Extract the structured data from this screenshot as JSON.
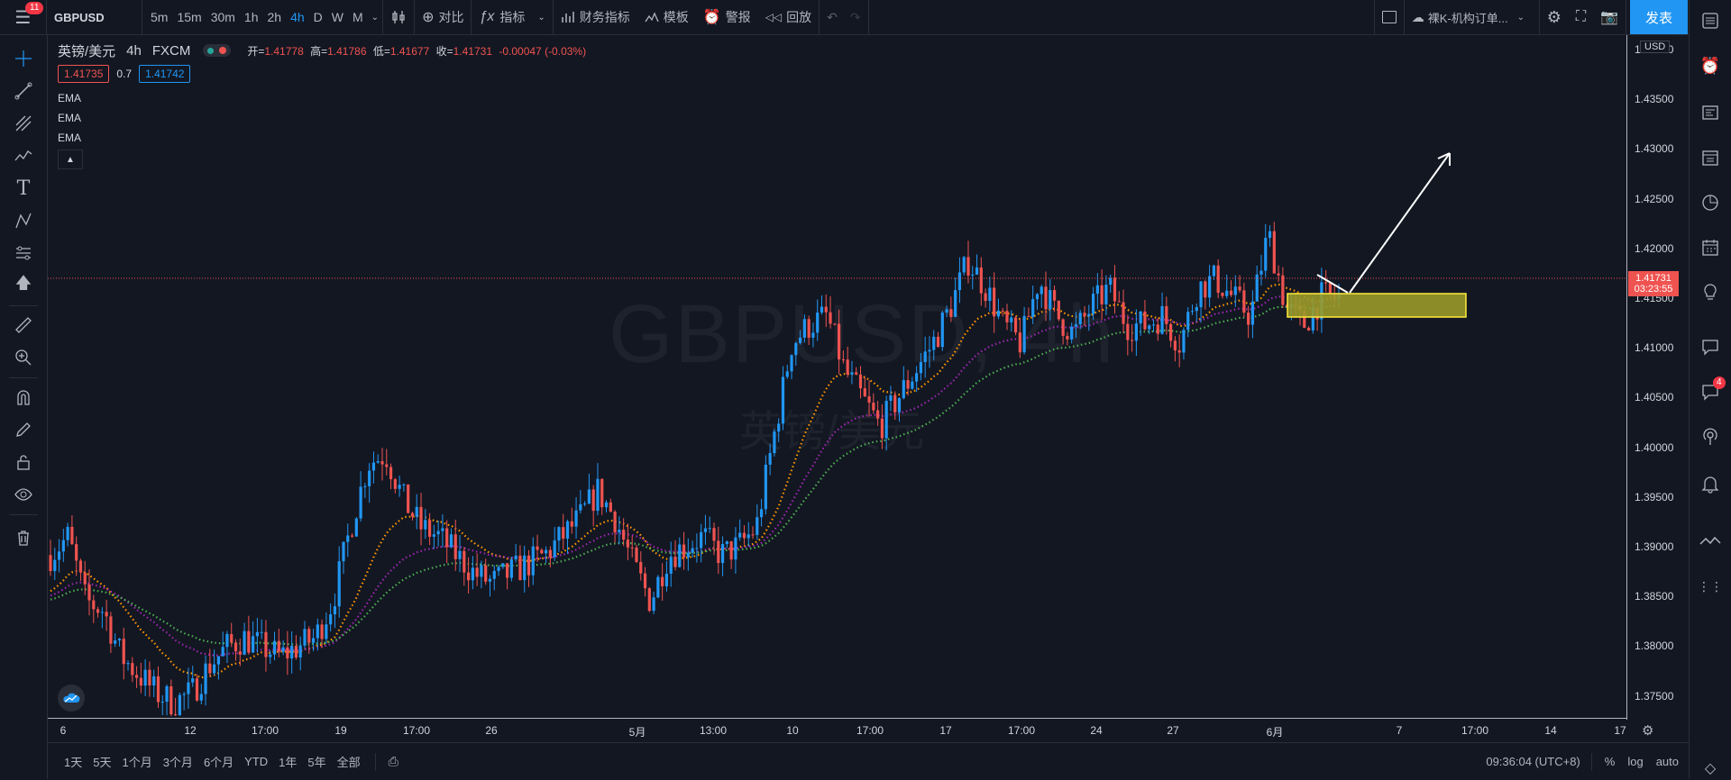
{
  "topbar": {
    "menu_badge": "11",
    "symbol": "GBPUSD",
    "timeframes": [
      "5m",
      "15m",
      "30m",
      "1h",
      "2h",
      "4h",
      "D",
      "W",
      "M"
    ],
    "active_timeframe": "4h",
    "compare": "对比",
    "indicators": "指标",
    "financials": "财务指标",
    "templates": "模板",
    "alerts": "警报",
    "replay": "回放",
    "layout_name": "裸K-机构订单...",
    "publish": "发表"
  },
  "legend": {
    "title": "英镑/美元",
    "interval": "4h",
    "exchange": "FXCM",
    "open_label": "开=",
    "open": "1.41778",
    "high_label": "高=",
    "high": "1.41786",
    "low_label": "低=",
    "low": "1.41677",
    "close_label": "收=",
    "close": "1.41731",
    "change": "-0.00047 (-0.03%)",
    "bid": "1.41735",
    "spread": "0.7",
    "ask": "1.41742",
    "studies": [
      "EMA",
      "EMA",
      "EMA"
    ]
  },
  "watermark": {
    "symbol": "GBPUSD, 4h",
    "name": "英镑/美元"
  },
  "price_axis": {
    "currency": "USD",
    "labels": [
      "1.44000",
      "1.43500",
      "1.43000",
      "1.42500",
      "1.42000",
      "1.41500",
      "1.41000",
      "1.40500",
      "1.40000",
      "1.39500",
      "1.39000",
      "1.38500",
      "1.38000",
      "1.37500"
    ],
    "current_price": "1.41731",
    "countdown": "03:23:55"
  },
  "time_axis": {
    "labels": [
      "6",
      "12",
      "17:00",
      "19",
      "17:00",
      "26",
      "5月",
      "13:00",
      "10",
      "17:00",
      "17",
      "17:00",
      "24",
      "27",
      "6月",
      "7",
      "17:00",
      "14",
      "17"
    ]
  },
  "bottombar": {
    "ranges": [
      "1天",
      "5天",
      "1个月",
      "3个月",
      "6个月",
      "YTD",
      "1年",
      "5年",
      "全部"
    ],
    "time": "09:36:04 (UTC+8)",
    "percent": "%",
    "log": "log",
    "auto": "auto"
  },
  "right_badge": "4",
  "colors": {
    "up": "#2196f3",
    "down": "#ef5350",
    "ema_fast": "#ff9800",
    "ema_mid": "#9c27b0",
    "ema_slow": "#4caf50",
    "zone_fill": "#8b8b2e",
    "zone_stroke": "#ffeb3b",
    "accent": "#2196f3"
  },
  "chart_data": {
    "type": "candlestick",
    "symbol": "GBPUSD",
    "interval": "4h",
    "ylim": [
      1.3715,
      1.4455
    ],
    "close_path": [
      1.389,
      1.391,
      1.384,
      1.383,
      1.378,
      1.376,
      1.374,
      1.373,
      1.374,
      1.377,
      1.379,
      1.38,
      1.379,
      1.378,
      1.379,
      1.38,
      1.384,
      1.392,
      1.399,
      1.4,
      1.395,
      1.392,
      1.391,
      1.389,
      1.387,
      1.386,
      1.387,
      1.388,
      1.389,
      1.391,
      1.393,
      1.396,
      1.393,
      1.388,
      1.384,
      1.389,
      1.39,
      1.391,
      1.389,
      1.39,
      1.392,
      1.402,
      1.412,
      1.414,
      1.415,
      1.409,
      1.406,
      1.403,
      1.406,
      1.409,
      1.412,
      1.416,
      1.421,
      1.418,
      1.414,
      1.412,
      1.419,
      1.415,
      1.413,
      1.416,
      1.418,
      1.414,
      1.414,
      1.415,
      1.412,
      1.418,
      1.419,
      1.417,
      1.415,
      1.424,
      1.416,
      1.414,
      1.417,
      1.417
    ],
    "ema_fast_last": 1.4157,
    "ema_mid_last": 1.4134,
    "ema_slow_last": 1.4107,
    "annotation_zone": [
      1.4133,
      1.4157
    ]
  }
}
